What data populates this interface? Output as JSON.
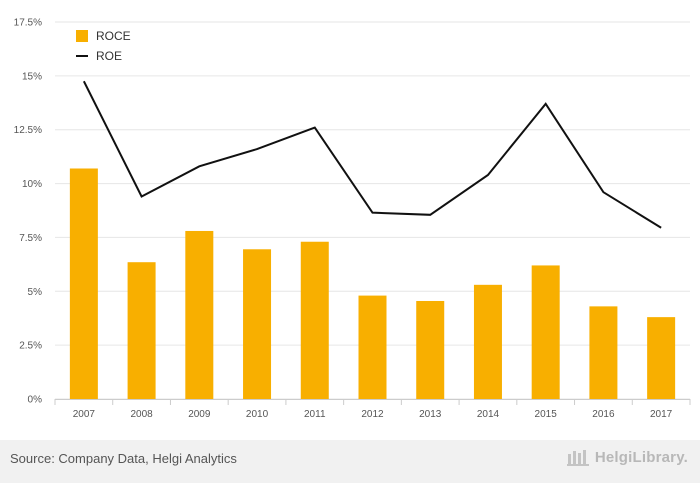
{
  "chart_data": {
    "type": "bar",
    "categories": [
      "2007",
      "2008",
      "2009",
      "2010",
      "2011",
      "2012",
      "2013",
      "2014",
      "2015",
      "2016",
      "2017"
    ],
    "series": [
      {
        "name": "ROCE",
        "kind": "bar",
        "color": "#f8af00",
        "values": [
          10.7,
          6.35,
          7.8,
          6.95,
          7.3,
          4.8,
          4.55,
          5.3,
          6.2,
          4.3,
          3.8
        ]
      },
      {
        "name": "ROE",
        "kind": "line",
        "color": "#111111",
        "values": [
          14.75,
          9.4,
          10.8,
          11.6,
          12.6,
          8.65,
          8.55,
          10.4,
          13.7,
          9.6,
          7.95
        ]
      }
    ],
    "yticks": [
      "0%",
      "2.5%",
      "5%",
      "7.5%",
      "10%",
      "12.5%",
      "15%",
      "17.5%"
    ],
    "ylim": [
      0,
      17.5
    ],
    "legend": "top-left",
    "title": "",
    "xlabel": "",
    "ylabel": ""
  },
  "footer": {
    "source": "Source: Company Data, Helgi Analytics",
    "brand": "HelgiLibrary."
  }
}
